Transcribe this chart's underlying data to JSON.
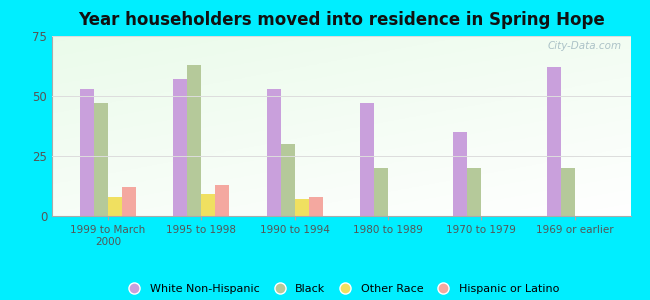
{
  "title": "Year householders moved into residence in Spring Hope",
  "categories": [
    "1999 to March\n2000",
    "1995 to 1998",
    "1990 to 1994",
    "1980 to 1989",
    "1970 to 1979",
    "1969 or earlier"
  ],
  "series": {
    "White Non-Hispanic": [
      53,
      57,
      53,
      47,
      35,
      62
    ],
    "Black": [
      47,
      63,
      30,
      20,
      20,
      20
    ],
    "Other Race": [
      8,
      9,
      7,
      0,
      0,
      0
    ],
    "Hispanic or Latino": [
      12,
      13,
      8,
      0,
      0,
      0
    ]
  },
  "colors": {
    "White Non-Hispanic": "#c9a0dc",
    "Black": "#b5c99a",
    "Other Race": "#f0e060",
    "Hispanic or Latino": "#f4a8a0"
  },
  "ylim": [
    0,
    75
  ],
  "yticks": [
    0,
    25,
    50,
    75
  ],
  "background_color": "#00eeff",
  "watermark": "City-Data.com",
  "bar_width": 0.15
}
